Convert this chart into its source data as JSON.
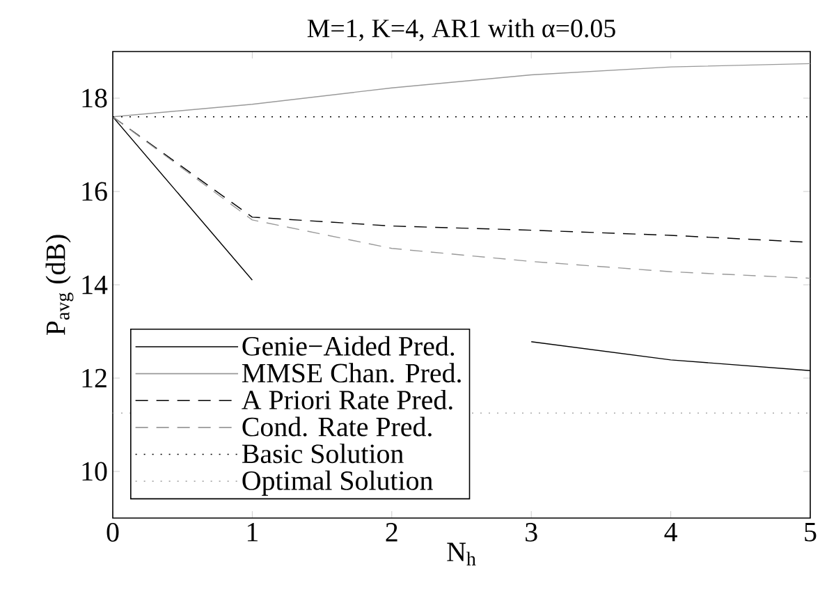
{
  "chart_data": {
    "type": "line",
    "title": "M=1, K=4, AR1 with α=0.05",
    "xlabel": "N$_{h}$",
    "ylabel": "P$_{avg}$ (dB)",
    "x": [
      0,
      1,
      2,
      3,
      4,
      5
    ],
    "series": [
      {
        "name": "Genie−Aided Pred.",
        "color": "#000000",
        "line_style": "solid",
        "values": [
          17.6,
          14.1,
          null,
          12.78,
          12.39,
          12.16
        ]
      },
      {
        "name": "MMSE Chan. Pred.",
        "color": "#999999",
        "line_style": "solid",
        "values": [
          17.6,
          17.87,
          18.22,
          18.5,
          18.67,
          18.74
        ]
      },
      {
        "name": "A Priori Rate Pred.",
        "color": "#000000",
        "line_style": "dashed",
        "values": [
          17.6,
          15.45,
          15.26,
          15.17,
          15.06,
          14.91
        ]
      },
      {
        "name": "Cond. Rate Pred.",
        "color": "#999999",
        "line_style": "dashed",
        "values": [
          17.6,
          15.39,
          14.78,
          14.5,
          14.28,
          14.14
        ]
      },
      {
        "name": "Basic Solution",
        "color": "#000000",
        "line_style": "dotted",
        "values": [
          17.6,
          17.6,
          17.6,
          17.6,
          17.6,
          17.6
        ]
      },
      {
        "name": "Optimal Solution",
        "color": "#aaaaaa",
        "line_style": "dotted",
        "x": [
          0,
          5
        ],
        "values": [
          11.25,
          11.25
        ]
      }
    ],
    "xlim": [
      0,
      5
    ],
    "ylim": [
      9,
      19
    ],
    "xticks": [
      0,
      1,
      2,
      3,
      4,
      5
    ],
    "yticks": [
      10,
      12,
      14,
      16,
      18
    ],
    "legend": "bottom left",
    "grid": false
  }
}
